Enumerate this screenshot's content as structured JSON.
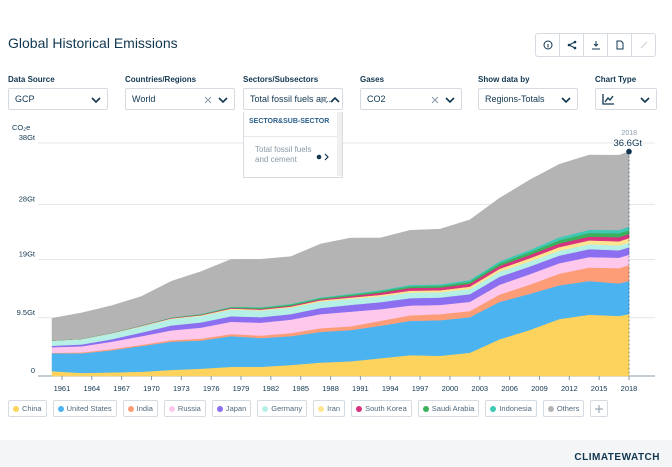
{
  "header": {
    "title": "Global Historical Emissions"
  },
  "filters": [
    {
      "label": "Data Source",
      "value": "GCP"
    },
    {
      "label": "Countries/Regions",
      "value": "World"
    },
    {
      "label": "Sectors/Subsectors",
      "value": "Total fossil fuels an..."
    },
    {
      "label": "Gases",
      "value": "CO2"
    },
    {
      "label": "Show data by",
      "value": "Regions-Totals"
    },
    {
      "label": "Chart Type"
    }
  ],
  "dropdown": {
    "group": "SECTOR&SUB-SECTOR",
    "option": "Total fossil fuels and cement"
  },
  "footer": {
    "brand": "CLIMATEWATCH"
  },
  "chart_data": {
    "type": "stacked-area",
    "y_label": "CO₂e",
    "x": [
      1960,
      1963,
      1966,
      1969,
      1972,
      1975,
      1978,
      1981,
      1984,
      1987,
      1990,
      1993,
      1996,
      1999,
      2002,
      2005,
      2008,
      2011,
      2014,
      2017,
      2018
    ],
    "xlim": [
      1960,
      2018
    ],
    "xticks": [
      1961,
      1964,
      1967,
      1970,
      1973,
      1976,
      1979,
      1982,
      1985,
      1988,
      1991,
      1994,
      1997,
      2000,
      2003,
      2006,
      2009,
      2012,
      2015,
      2018
    ],
    "ylim": [
      0,
      38
    ],
    "yticks": [
      0,
      {
        "value": 9.5,
        "label": "9.5Gt"
      },
      {
        "value": 19,
        "label": "19Gt"
      },
      {
        "value": 28,
        "label": "28Gt"
      },
      {
        "value": 38,
        "label": "38Gt"
      }
    ],
    "grid": true,
    "series": [
      {
        "name": "China",
        "color": "#fdd35e",
        "values": [
          0.8,
          0.5,
          0.6,
          0.7,
          1.0,
          1.2,
          1.5,
          1.5,
          1.8,
          2.2,
          2.4,
          2.9,
          3.4,
          3.3,
          3.8,
          6.0,
          7.5,
          9.3,
          10.0,
          9.8,
          10.1
        ]
      },
      {
        "name": "United States",
        "color": "#4bb4f0",
        "values": [
          2.9,
          3.2,
          3.6,
          4.2,
          4.6,
          4.6,
          5.0,
          4.7,
          4.7,
          5.0,
          5.1,
          5.3,
          5.6,
          5.8,
          5.8,
          6.1,
          5.9,
          5.5,
          5.5,
          5.3,
          5.4
        ]
      },
      {
        "name": "India",
        "color": "#fd9d78",
        "values": [
          0.1,
          0.15,
          0.2,
          0.2,
          0.25,
          0.3,
          0.35,
          0.4,
          0.5,
          0.6,
          0.6,
          0.8,
          0.9,
          1.0,
          1.0,
          1.2,
          1.5,
          1.9,
          2.2,
          2.5,
          2.6
        ]
      },
      {
        "name": "Russia",
        "color": "#fdc8ec",
        "values": [
          0.9,
          1.0,
          1.2,
          1.4,
          1.6,
          1.8,
          2.0,
          2.1,
          2.2,
          2.3,
          2.4,
          1.9,
          1.6,
          1.5,
          1.5,
          1.6,
          1.7,
          1.7,
          1.7,
          1.7,
          1.7
        ]
      },
      {
        "name": "Japan",
        "color": "#8c6ff0",
        "values": [
          0.23,
          0.3,
          0.4,
          0.6,
          0.8,
          0.85,
          0.9,
          0.9,
          0.9,
          1.0,
          1.1,
          1.15,
          1.2,
          1.2,
          1.25,
          1.3,
          1.25,
          1.25,
          1.3,
          1.2,
          1.2
        ]
      },
      {
        "name": "Germany",
        "color": "#b5efe5",
        "values": [
          0.8,
          0.85,
          0.95,
          1.0,
          1.05,
          1.05,
          1.1,
          1.1,
          1.05,
          1.05,
          1.0,
          0.93,
          0.92,
          0.86,
          0.86,
          0.84,
          0.83,
          0.8,
          0.8,
          0.8,
          0.76
        ]
      },
      {
        "name": "Iran",
        "color": "#ffe58f",
        "values": [
          0.04,
          0.05,
          0.05,
          0.07,
          0.1,
          0.12,
          0.15,
          0.13,
          0.17,
          0.2,
          0.2,
          0.26,
          0.3,
          0.33,
          0.37,
          0.45,
          0.52,
          0.58,
          0.62,
          0.67,
          0.72
        ]
      },
      {
        "name": "South Korea",
        "color": "#d6337f",
        "values": [
          0.01,
          0.02,
          0.03,
          0.05,
          0.07,
          0.08,
          0.12,
          0.13,
          0.15,
          0.18,
          0.25,
          0.35,
          0.45,
          0.44,
          0.48,
          0.5,
          0.53,
          0.6,
          0.62,
          0.67,
          0.7
        ]
      },
      {
        "name": "Saudi Arabia",
        "color": "#3bb15c",
        "values": [
          0.01,
          0.01,
          0.02,
          0.03,
          0.05,
          0.08,
          0.12,
          0.18,
          0.2,
          0.18,
          0.2,
          0.24,
          0.26,
          0.28,
          0.33,
          0.4,
          0.45,
          0.52,
          0.6,
          0.64,
          0.62
        ]
      },
      {
        "name": "Indonesia",
        "color": "#3ec9b4",
        "values": [
          0.02,
          0.02,
          0.02,
          0.03,
          0.04,
          0.06,
          0.08,
          0.1,
          0.1,
          0.12,
          0.15,
          0.18,
          0.23,
          0.24,
          0.28,
          0.33,
          0.38,
          0.48,
          0.5,
          0.53,
          0.58
        ]
      },
      {
        "name": "Others",
        "color": "#b4b4b4",
        "values": [
          3.6,
          4.2,
          4.4,
          4.7,
          5.9,
          6.9,
          7.7,
          7.8,
          7.7,
          8.7,
          9.1,
          8.5,
          8.9,
          9.0,
          9.8,
          10.3,
          11.4,
          11.9,
          12.2,
          12.2,
          12.2
        ]
      }
    ],
    "annotation": {
      "x": 2018,
      "value": 36.6,
      "label": "36.6Gt"
    }
  }
}
